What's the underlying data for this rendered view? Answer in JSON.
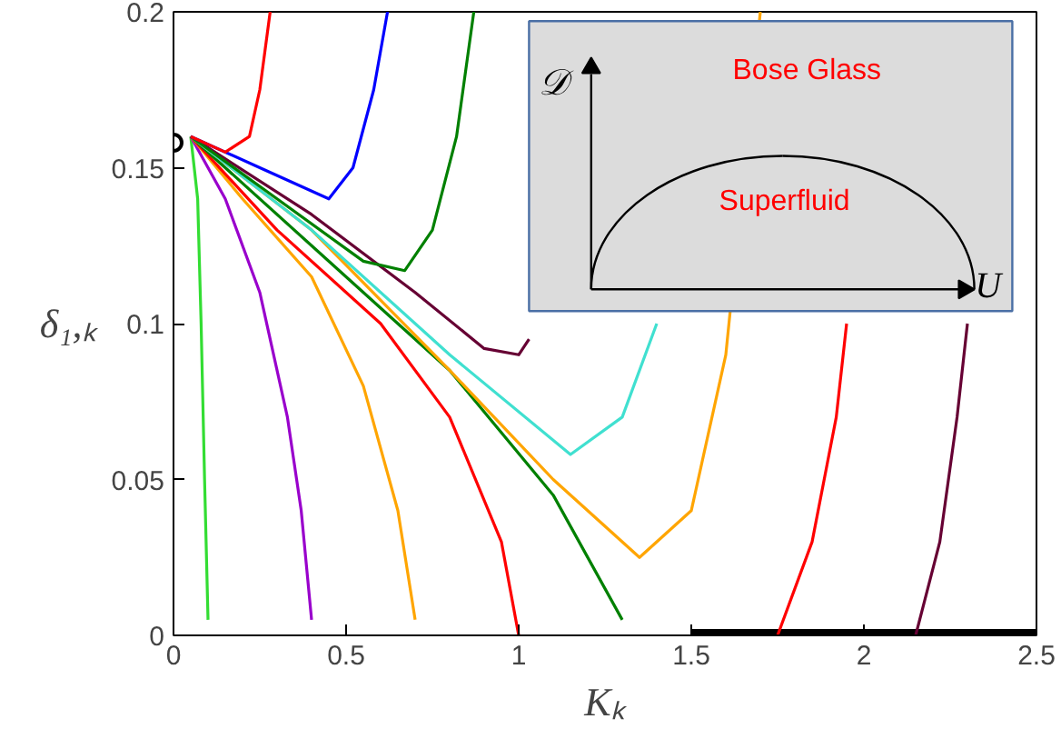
{
  "chart_data": {
    "type": "line",
    "xlabel": "Kₖ",
    "ylabel": "δ₁,ₖ",
    "xlim": [
      0,
      2.5
    ],
    "ylim": [
      0,
      0.2
    ],
    "xticks": [
      0,
      0.5,
      1,
      1.5,
      2,
      2.5
    ],
    "yticks": [
      0,
      0.05,
      0.1,
      0.15,
      0.2
    ],
    "grid": false,
    "line_style": "solid",
    "annotations": [
      "𝒟",
      "U",
      "Bose Glass",
      "Superfluid"
    ],
    "series": [
      {
        "color": "#000000",
        "x": [
          1.5,
          2.5
        ],
        "values": [
          0,
          0
        ]
      },
      {
        "color": "#33dd33",
        "x": [
          0.05,
          0.07,
          0.08,
          0.09,
          0.1
        ],
        "values": [
          0.16,
          0.14,
          0.1,
          0.05,
          0.005
        ]
      },
      {
        "color": "#9900cc",
        "x": [
          0.05,
          0.15,
          0.25,
          0.33,
          0.37,
          0.4
        ],
        "values": [
          0.16,
          0.14,
          0.11,
          0.07,
          0.04,
          0.005
        ]
      },
      {
        "color": "#ffa500",
        "x": [
          0.05,
          0.2,
          0.4,
          0.55,
          0.65,
          0.7
        ],
        "values": [
          0.16,
          0.14,
          0.115,
          0.08,
          0.04,
          0.005
        ]
      },
      {
        "color": "#ff0000",
        "x": [
          0.05,
          0.3,
          0.6,
          0.8,
          0.95,
          1.0
        ],
        "values": [
          0.16,
          0.13,
          0.1,
          0.07,
          0.03,
          0
        ]
      },
      {
        "color": "#008000",
        "x": [
          0.05,
          0.4,
          0.8,
          1.1,
          1.3
        ],
        "values": [
          0.16,
          0.125,
          0.085,
          0.045,
          0.005
        ]
      },
      {
        "color": "#ffa500",
        "x": [
          0.05,
          0.4,
          0.8,
          1.1,
          1.35,
          1.5,
          1.6,
          1.7
        ],
        "values": [
          0.16,
          0.13,
          0.085,
          0.05,
          0.025,
          0.04,
          0.09,
          0.2
        ]
      },
      {
        "color": "#40e0d0",
        "x": [
          0.05,
          0.4,
          0.8,
          1.15,
          1.3,
          1.4
        ],
        "values": [
          0.16,
          0.13,
          0.09,
          0.058,
          0.07,
          0.1
        ]
      },
      {
        "color": "#660033",
        "x": [
          0.05,
          0.4,
          0.7,
          0.9,
          1.0,
          1.03
        ],
        "values": [
          0.16,
          0.135,
          0.11,
          0.092,
          0.09,
          0.095
        ]
      },
      {
        "color": "#008000",
        "x": [
          0.05,
          0.3,
          0.55,
          0.67,
          0.75,
          0.82,
          0.87
        ],
        "values": [
          0.16,
          0.14,
          0.12,
          0.117,
          0.13,
          0.16,
          0.2
        ]
      },
      {
        "color": "#0000ff",
        "x": [
          0.05,
          0.25,
          0.45,
          0.52,
          0.58,
          0.62
        ],
        "values": [
          0.16,
          0.15,
          0.14,
          0.15,
          0.175,
          0.2
        ]
      },
      {
        "color": "#ff0000",
        "x": [
          0.05,
          0.15,
          0.22,
          0.25,
          0.28
        ],
        "values": [
          0.16,
          0.155,
          0.16,
          0.175,
          0.2
        ]
      },
      {
        "color": "#ff0000",
        "x": [
          1.75,
          1.85,
          1.92,
          1.95
        ],
        "values": [
          0,
          0.03,
          0.07,
          0.1
        ]
      },
      {
        "color": "#660033",
        "x": [
          2.15,
          2.22,
          2.27,
          2.3
        ],
        "values": [
          0,
          0.03,
          0.07,
          0.1
        ]
      },
      {
        "type": "scatter",
        "marker": "circle",
        "color": "#000000",
        "x": [
          0
        ],
        "values": [
          0.158
        ]
      }
    ]
  }
}
